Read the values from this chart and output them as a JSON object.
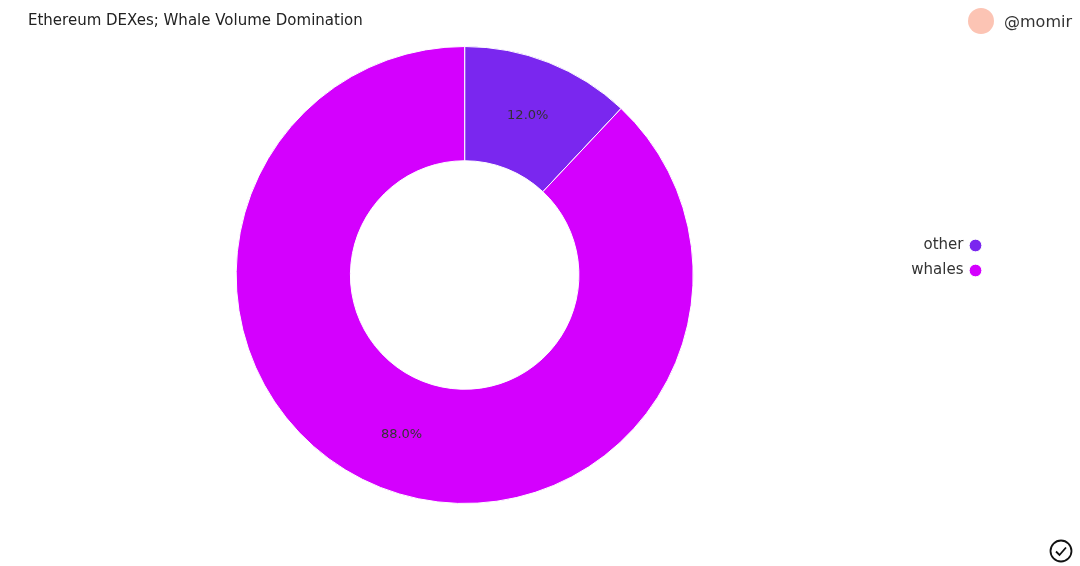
{
  "chart_data": {
    "type": "donut",
    "title": "Ethereum DEXes; Whale Volume Domination",
    "categories": [
      "other",
      "whales"
    ],
    "values": [
      12.0,
      88.0
    ],
    "value_labels": [
      "12.0%",
      "88.0%"
    ],
    "colors": [
      "#7a27ef",
      "#d400fe"
    ],
    "legend": "right",
    "annotations": [
      "@momir"
    ]
  }
}
